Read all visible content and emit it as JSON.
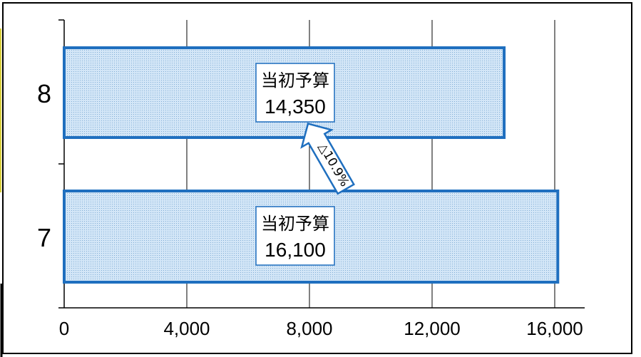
{
  "chart_data": {
    "type": "bar",
    "orientation": "horizontal",
    "categories": [
      "7",
      "8"
    ],
    "values": [
      16100,
      14350
    ],
    "xlim": [
      0,
      17000
    ],
    "xticks": [
      0,
      4000,
      8000,
      12000,
      16000
    ],
    "xtick_labels": [
      "0",
      "4,000",
      "8,000",
      "12,000",
      "16,000"
    ],
    "grid": true,
    "bar_labels": [
      {
        "category": "7",
        "title": "当初予算",
        "value_text": "16,100"
      },
      {
        "category": "8",
        "title": "当初予算",
        "value_text": "14,350"
      }
    ],
    "annotation": {
      "text": "△10.9%",
      "from": "7",
      "to": "8"
    },
    "colors": {
      "bar_fill": "#c7def4",
      "bar_stroke": "#1f6fbf",
      "grid": "#000000",
      "frame": "#000000"
    }
  }
}
